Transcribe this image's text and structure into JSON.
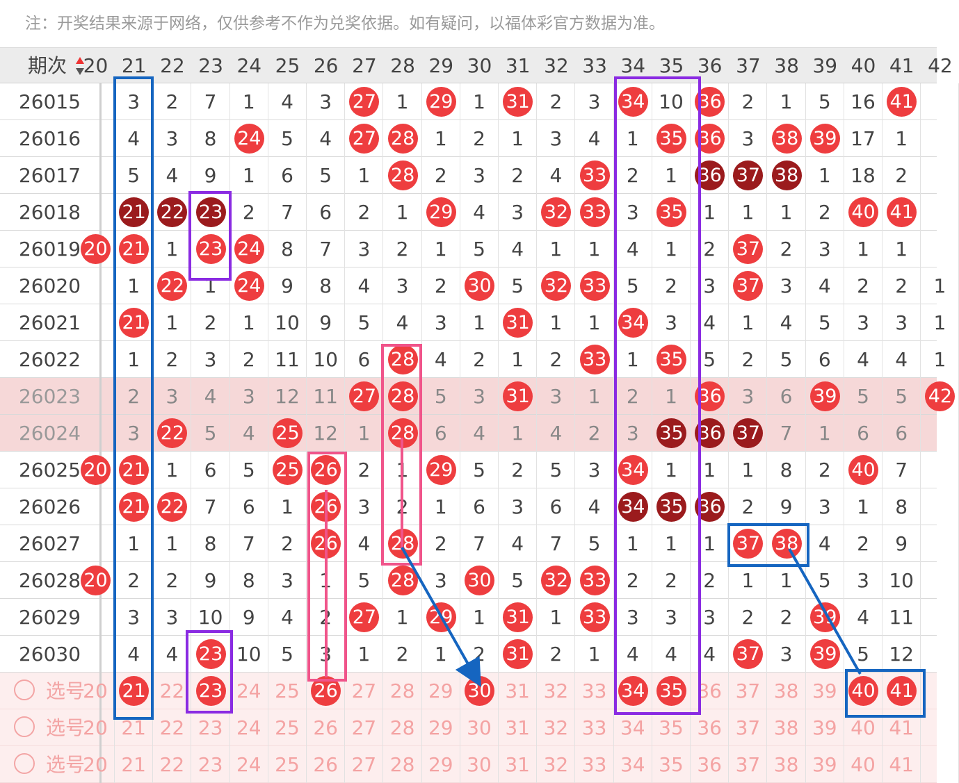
{
  "notice": "注：开奖结果来源于网络，仅供参考不作为兑奖依据。如有疑问，以福体彩官方数据为准。",
  "header": {
    "issue_label": "期次",
    "columns": [
      "20",
      "21",
      "22",
      "23",
      "24",
      "25",
      "26",
      "27",
      "28",
      "29",
      "30",
      "31",
      "32",
      "33",
      "34",
      "35",
      "36",
      "37",
      "38",
      "39",
      "40",
      "41",
      "42"
    ]
  },
  "colors": {
    "ball": "#ee3d3f",
    "ball_dark": "#9b1b1d",
    "blue_box": "#1565c0",
    "purple_box": "#8a2be2",
    "pink_box": "#f0548a"
  },
  "rows": [
    {
      "issue": "26015",
      "cells": [
        "",
        "3",
        "2",
        "7",
        "1",
        "4",
        "3",
        "27*",
        "1",
        "29*",
        "1",
        "31*",
        "2",
        "3",
        "34*",
        "10",
        "36*",
        "2",
        "1",
        "5",
        "16",
        "41*",
        ""
      ]
    },
    {
      "issue": "26016",
      "cells": [
        "",
        "4",
        "3",
        "8",
        "24*",
        "5",
        "4",
        "27*",
        "28*",
        "1",
        "2",
        "1",
        "3",
        "4",
        "1",
        "35*",
        "36*",
        "3",
        "38*",
        "39*",
        "17",
        "1",
        ""
      ]
    },
    {
      "issue": "26017",
      "cells": [
        "",
        "5",
        "4",
        "9",
        "1",
        "6",
        "5",
        "1",
        "28*",
        "2",
        "3",
        "2",
        "4",
        "33*",
        "2",
        "1",
        "36d",
        "37d",
        "38d",
        "1",
        "18",
        "2",
        ""
      ]
    },
    {
      "issue": "26018",
      "cells": [
        "",
        "21d",
        "22d",
        "23d",
        "2",
        "7",
        "6",
        "2",
        "1",
        "29*",
        "4",
        "3",
        "32*",
        "33*",
        "3",
        "35*",
        "1",
        "1",
        "1",
        "2",
        "40*",
        "41*",
        ""
      ]
    },
    {
      "issue": "26019",
      "cells": [
        "20*",
        "21*",
        "1",
        "23*",
        "24*",
        "8",
        "7",
        "3",
        "2",
        "1",
        "5",
        "4",
        "1",
        "1",
        "4",
        "1",
        "2",
        "37*",
        "2",
        "3",
        "1",
        "1",
        ""
      ]
    },
    {
      "issue": "26020",
      "cells": [
        "",
        "1",
        "22*",
        "1",
        "24*",
        "9",
        "8",
        "4",
        "3",
        "2",
        "30*",
        "5",
        "32*",
        "33*",
        "5",
        "2",
        "3",
        "37*",
        "3",
        "4",
        "2",
        "2",
        "1"
      ]
    },
    {
      "issue": "26021",
      "cells": [
        "",
        "21*",
        "1",
        "2",
        "1",
        "10",
        "9",
        "5",
        "4",
        "3",
        "1",
        "31*",
        "1",
        "1",
        "34*",
        "3",
        "4",
        "1",
        "4",
        "5",
        "3",
        "3",
        "1"
      ]
    },
    {
      "issue": "26022",
      "cells": [
        "",
        "1",
        "2",
        "3",
        "2",
        "11",
        "10",
        "6",
        "28*",
        "4",
        "2",
        "1",
        "2",
        "33*",
        "1",
        "35*",
        "5",
        "2",
        "5",
        "6",
        "4",
        "4",
        "1"
      ]
    },
    {
      "issue": "26023",
      "cells": [
        "",
        "2",
        "3",
        "4",
        "3",
        "12",
        "11",
        "27*",
        "28*",
        "5",
        "3",
        "31*",
        "3",
        "1",
        "2",
        "1",
        "36*",
        "3",
        "6",
        "39*",
        "5",
        "5",
        "42*"
      ],
      "hl": true
    },
    {
      "issue": "26024",
      "cells": [
        "",
        "3",
        "22*",
        "5",
        "4",
        "25*",
        "12",
        "1",
        "28*",
        "6",
        "4",
        "1",
        "4",
        "2",
        "3",
        "35d",
        "36d",
        "37d",
        "7",
        "1",
        "6",
        "6",
        ""
      ],
      "hl": true
    },
    {
      "issue": "26025",
      "cells": [
        "20*",
        "21*",
        "1",
        "6",
        "5",
        "25*",
        "26*",
        "2",
        "1",
        "29*",
        "5",
        "2",
        "5",
        "3",
        "34*",
        "1",
        "1",
        "1",
        "8",
        "2",
        "40*",
        "7",
        ""
      ]
    },
    {
      "issue": "26026",
      "cells": [
        "",
        "21*",
        "22*",
        "7",
        "6",
        "1",
        "26*",
        "3",
        "2",
        "1",
        "6",
        "3",
        "6",
        "4",
        "34d",
        "35d",
        "36d",
        "2",
        "9",
        "3",
        "1",
        "8",
        ""
      ]
    },
    {
      "issue": "26027",
      "cells": [
        "",
        "1",
        "1",
        "8",
        "7",
        "2",
        "26*",
        "4",
        "28*",
        "2",
        "7",
        "4",
        "7",
        "5",
        "1",
        "1",
        "1",
        "37*",
        "38*",
        "4",
        "2",
        "9",
        ""
      ]
    },
    {
      "issue": "26028",
      "cells": [
        "20*",
        "2",
        "2",
        "9",
        "8",
        "3",
        "1",
        "5",
        "28*",
        "3",
        "30*",
        "5",
        "32*",
        "33*",
        "2",
        "2",
        "2",
        "1",
        "1",
        "5",
        "3",
        "10",
        ""
      ]
    },
    {
      "issue": "26029",
      "cells": [
        "",
        "3",
        "3",
        "10",
        "9",
        "4",
        "2",
        "27*",
        "1",
        "29*",
        "1",
        "31*",
        "1",
        "33*",
        "3",
        "3",
        "3",
        "2",
        "2",
        "39*",
        "4",
        "11",
        ""
      ]
    },
    {
      "issue": "26030",
      "cells": [
        "",
        "4",
        "4",
        "23*",
        "10",
        "5",
        "3",
        "1",
        "2",
        "1",
        "2",
        "31*",
        "2",
        "1",
        "4",
        "4",
        "4",
        "37*",
        "3",
        "39*",
        "5",
        "12",
        ""
      ]
    }
  ],
  "pick_rows": [
    {
      "label": "选号",
      "cells": [
        "20",
        "21*",
        "22",
        "23*",
        "24",
        "25",
        "26*",
        "27",
        "28",
        "29",
        "30*",
        "31",
        "32",
        "33",
        "34*",
        "35*",
        "36",
        "37",
        "38",
        "39",
        "40*",
        "41*",
        ""
      ]
    },
    {
      "label": "选号",
      "cells": [
        "20",
        "21",
        "22",
        "23",
        "24",
        "25",
        "26",
        "27",
        "28",
        "29",
        "30",
        "31",
        "32",
        "33",
        "34",
        "35",
        "36",
        "37",
        "38",
        "39",
        "40",
        "41",
        ""
      ]
    },
    {
      "label": "选号",
      "cells": [
        "20",
        "21",
        "22",
        "23",
        "24",
        "25",
        "26",
        "27",
        "28",
        "29",
        "30",
        "31",
        "32",
        "33",
        "34",
        "35",
        "36",
        "37",
        "38",
        "39",
        "40",
        "41",
        ""
      ]
    }
  ]
}
